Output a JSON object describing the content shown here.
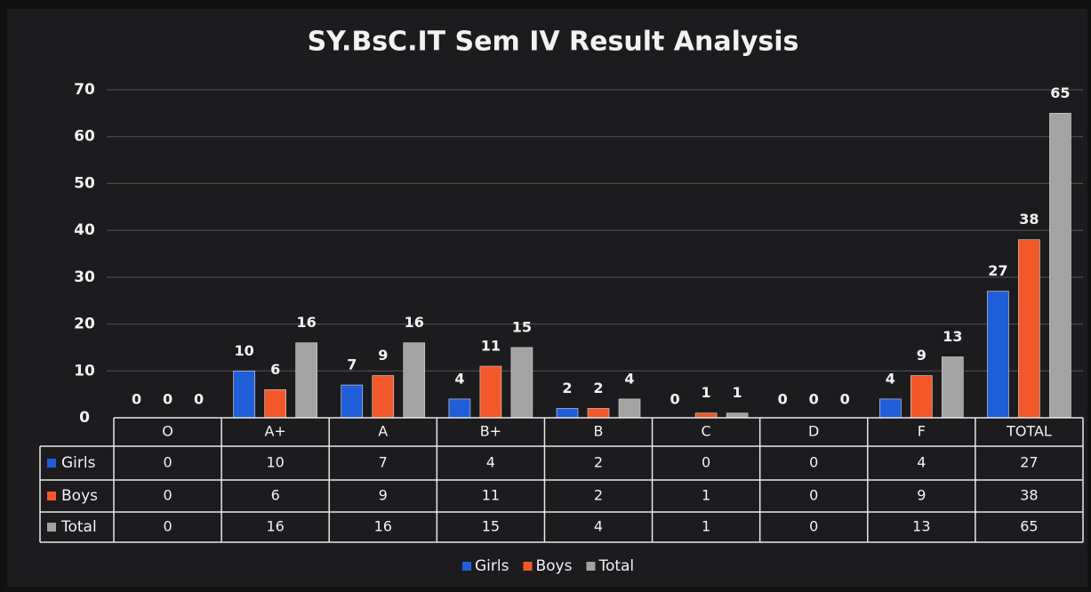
{
  "chart_data": {
    "type": "bar",
    "title": "SY.BsC.IT Sem IV Result Analysis",
    "categories": [
      "O",
      "A+",
      "A",
      "B+",
      "B",
      "C",
      "D",
      "F",
      "TOTAL"
    ],
    "series": [
      {
        "name": "Girls",
        "color": "#1f5ed8",
        "values": [
          0,
          10,
          7,
          4,
          2,
          0,
          0,
          4,
          27
        ]
      },
      {
        "name": "Boys",
        "color": "#f2582a",
        "values": [
          0,
          6,
          9,
          11,
          2,
          1,
          0,
          9,
          38
        ]
      },
      {
        "name": "Total",
        "color": "#a3a3a3",
        "values": [
          0,
          16,
          16,
          15,
          4,
          1,
          0,
          13,
          65
        ]
      }
    ],
    "ylim": [
      0,
      70
    ],
    "yticks": [
      0,
      10,
      20,
      30,
      40,
      50,
      60,
      70
    ],
    "grid": true,
    "legend": "bottom",
    "data_table": true
  }
}
